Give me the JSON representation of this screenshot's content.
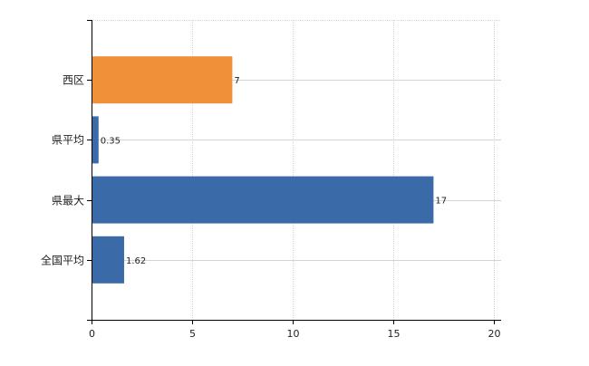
{
  "chart_data": {
    "type": "bar",
    "orientation": "horizontal",
    "categories": [
      "西区",
      "県平均",
      "県最大",
      "全国平均"
    ],
    "values": [
      7,
      0.35,
      17,
      1.62
    ],
    "value_labels": [
      "7",
      "0.35",
      "17",
      "1.62"
    ],
    "bar_colors": [
      "#f0913a",
      "#3a6aa8",
      "#3a6aa8",
      "#3a6aa8"
    ],
    "xlim": [
      0,
      20
    ],
    "xticks": [
      0,
      5,
      10,
      15,
      20
    ],
    "grid": true,
    "title": "",
    "xlabel": "",
    "ylabel": ""
  }
}
